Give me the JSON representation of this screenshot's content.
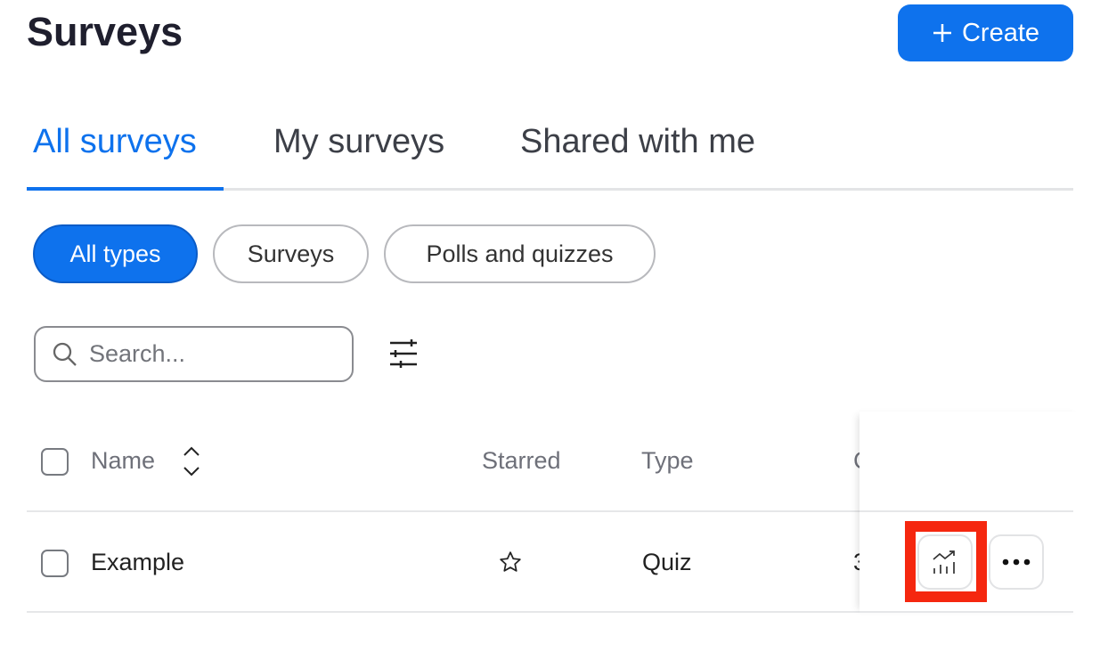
{
  "header": {
    "title": "Surveys",
    "create_label": "Create"
  },
  "tabs": [
    {
      "label": "All surveys",
      "active": true
    },
    {
      "label": "My surveys"
    },
    {
      "label": "Shared with me"
    }
  ],
  "type_filters": [
    {
      "label": "All types",
      "active": true
    },
    {
      "label": "Surveys"
    },
    {
      "label": "Polls and quizzes"
    }
  ],
  "search": {
    "placeholder": "Search...",
    "value": ""
  },
  "table": {
    "columns": [
      "Name",
      "Starred",
      "Type",
      "C"
    ],
    "rows": [
      {
        "name": "Example",
        "starred": false,
        "type": "Quiz",
        "clipped": "3"
      }
    ]
  },
  "colors": {
    "accent": "#0e72ed",
    "highlight": "#f5270f"
  },
  "icons": {
    "create": "plus-icon",
    "search": "search-icon",
    "filter": "sliders-icon",
    "sort": "sort-icon",
    "star": "star-outline-icon",
    "analytics": "chart-trend-icon",
    "more": "more-horizontal-icon"
  }
}
